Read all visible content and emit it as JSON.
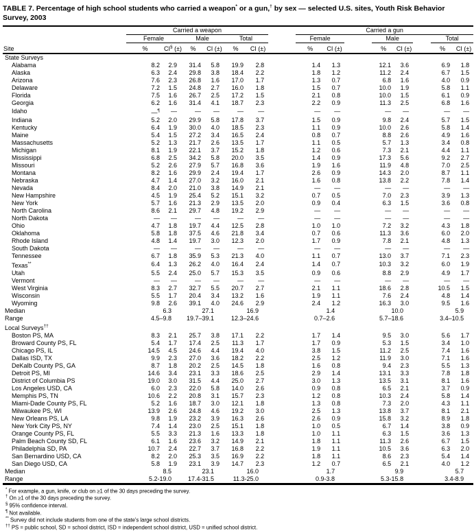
{
  "title": {
    "part1": "TABLE 7. Percentage of high school students who carried a weapon",
    "sup1": "*",
    "part2": " or a gun,",
    "sup2": "†",
    "part3": " by sex — selected U.S. sites, Youth Risk Behavior Survey, 2003"
  },
  "table": {
    "site_header": "Site",
    "group_weapon": "Carried a weapon",
    "group_gun": "Carried a gun",
    "sub_female": "Female",
    "sub_male": "Male",
    "sub_total": "Total",
    "pct": "%",
    "ci": "CI (±)",
    "ci_base": "CI",
    "ci_sup": "§",
    "ci_paren": " (±)",
    "sections": [
      {
        "label": "State Surveys",
        "label_sup": "",
        "rows": [
          {
            "site": "Alabama",
            "v": [
              "8.2",
              "2.9",
              "31.4",
              "5.8",
              "19.9",
              "2.8",
              "1.4",
              "1.3",
              "12.1",
              "3.6",
              "6.9",
              "1.8"
            ]
          },
          {
            "site": "Alaska",
            "v": [
              "6.3",
              "2.4",
              "29.8",
              "3.8",
              "18.4",
              "2.2",
              "1.8",
              "1.2",
              "11.2",
              "2.4",
              "6.7",
              "1.5"
            ]
          },
          {
            "site": "Arizona",
            "v": [
              "7.6",
              "2.3",
              "26.8",
              "1.6",
              "17.0",
              "1.7",
              "1.3",
              "0.7",
              "6.8",
              "1.6",
              "4.0",
              "0.9"
            ]
          },
          {
            "site": "Delaware",
            "v": [
              "7.2",
              "1.5",
              "24.8",
              "2.7",
              "16.0",
              "1.8",
              "1.5",
              "0.7",
              "10.0",
              "1.9",
              "5.8",
              "1.1"
            ]
          },
          {
            "site": "Florida",
            "v": [
              "7.5",
              "1.6",
              "26.7",
              "2.5",
              "17.2",
              "1.5",
              "2.1",
              "0.8",
              "10.0",
              "1.5",
              "6.1",
              "0.9"
            ]
          },
          {
            "site": "Georgia",
            "v": [
              "6.2",
              "1.6",
              "31.4",
              "4.1",
              "18.7",
              "2.3",
              "2.2",
              "0.9",
              "11.3",
              "2.5",
              "6.8",
              "1.6"
            ]
          },
          {
            "site": "Idaho",
            "v": [
              "—¶",
              "—",
              "—",
              "—",
              "—",
              "—",
              "—",
              "—",
              "—",
              "—",
              "—",
              "—"
            ]
          },
          {
            "site": "Indiana",
            "v": [
              "5.2",
              "2.0",
              "29.9",
              "5.8",
              "17.8",
              "3.7",
              "1.5",
              "0.9",
              "9.8",
              "2.4",
              "5.7",
              "1.5"
            ]
          },
          {
            "site": "Kentucky",
            "v": [
              "6.4",
              "1.9",
              "30.0",
              "4.0",
              "18.5",
              "2.3",
              "1.1",
              "0.9",
              "10.0",
              "2.6",
              "5.8",
              "1.4"
            ]
          },
          {
            "site": "Maine",
            "v": [
              "5.4",
              "1.5",
              "27.2",
              "3.4",
              "16.5",
              "2.4",
              "0.8",
              "0.7",
              "8.8",
              "2.6",
              "4.9",
              "1.6"
            ]
          },
          {
            "site": "Massachusetts",
            "v": [
              "5.2",
              "1.3",
              "21.7",
              "2.6",
              "13.5",
              "1.7",
              "1.1",
              "0.5",
              "5.7",
              "1.3",
              "3.4",
              "0.8"
            ]
          },
          {
            "site": "Michigan",
            "v": [
              "8.1",
              "1.9",
              "22.1",
              "3.7",
              "15.2",
              "1.8",
              "1.2",
              "0.6",
              "7.3",
              "2.1",
              "4.4",
              "1.1"
            ]
          },
          {
            "site": "Mississippi",
            "v": [
              "6.8",
              "2.5",
              "34.2",
              "5.8",
              "20.0",
              "3.5",
              "1.4",
              "0.9",
              "17.3",
              "5.6",
              "9.2",
              "2.7"
            ]
          },
          {
            "site": "Missouri",
            "v": [
              "5.2",
              "2.6",
              "27.9",
              "5.7",
              "16.8",
              "3.6",
              "1.9",
              "1.6",
              "11.9",
              "4.8",
              "7.0",
              "2.5"
            ]
          },
          {
            "site": "Montana",
            "v": [
              "8.2",
              "1.6",
              "29.9",
              "2.4",
              "19.4",
              "1.7",
              "2.6",
              "0.9",
              "14.3",
              "2.0",
              "8.7",
              "1.1"
            ]
          },
          {
            "site": "Nebraska",
            "v": [
              "4.7",
              "1.4",
              "27.0",
              "3.2",
              "16.0",
              "2.1",
              "1.6",
              "0.8",
              "13.8",
              "2.2",
              "7.8",
              "1.4"
            ]
          },
          {
            "site": "Nevada",
            "v": [
              "8.4",
              "2.0",
              "21.0",
              "3.8",
              "14.9",
              "2.1",
              "—",
              "—",
              "—",
              "—",
              "—",
              "—"
            ]
          },
          {
            "site": "New Hampshire",
            "v": [
              "4.5",
              "1.9",
              "25.4",
              "5.2",
              "15.1",
              "3.2",
              "0.7",
              "0.5",
              "7.0",
              "2.3",
              "3.9",
              "1.3"
            ]
          },
          {
            "site": "New York",
            "v": [
              "5.7",
              "1.6",
              "21.3",
              "2.9",
              "13.5",
              "2.0",
              "0.9",
              "0.4",
              "6.3",
              "1.5",
              "3.6",
              "0.8"
            ]
          },
          {
            "site": "North Carolina",
            "v": [
              "8.6",
              "2.1",
              "29.7",
              "4.8",
              "19.2",
              "2.9",
              "—",
              "—",
              "—",
              "—",
              "—",
              "—"
            ]
          },
          {
            "site": "North Dakota",
            "v": [
              "—",
              "—",
              "—",
              "—",
              "—",
              "—",
              "—",
              "—",
              "—",
              "—",
              "—",
              "—"
            ]
          },
          {
            "site": "Ohio",
            "v": [
              "4.7",
              "1.8",
              "19.7",
              "4.4",
              "12.5",
              "2.8",
              "1.0",
              "1.0",
              "7.2",
              "3.2",
              "4.3",
              "1.8"
            ]
          },
          {
            "site": "Oklahoma",
            "v": [
              "5.8",
              "1.8",
              "37.5",
              "4.6",
              "21.8",
              "3.4",
              "0.7",
              "0.6",
              "11.3",
              "3.6",
              "6.0",
              "2.0"
            ]
          },
          {
            "site": "Rhode Island",
            "v": [
              "4.8",
              "1.4",
              "19.7",
              "3.0",
              "12.3",
              "2.0",
              "1.7",
              "0.9",
              "7.8",
              "2.1",
              "4.8",
              "1.3"
            ]
          },
          {
            "site": "South Dakota",
            "v": [
              "—",
              "—",
              "—",
              "—",
              "—",
              "—",
              "—",
              "—",
              "—",
              "—",
              "—",
              "—"
            ]
          },
          {
            "site": "Tennessee",
            "v": [
              "6.7",
              "1.8",
              "35.9",
              "5.3",
              "21.3",
              "4.0",
              "1.1",
              "0.7",
              "13.0",
              "3.7",
              "7.1",
              "2.3"
            ]
          },
          {
            "site": "Texas",
            "sup": "**",
            "v": [
              "6.4",
              "1.3",
              "26.2",
              "4.0",
              "16.4",
              "2.4",
              "1.4",
              "0.7",
              "10.3",
              "3.2",
              "6.0",
              "1.9"
            ]
          },
          {
            "site": "Utah",
            "v": [
              "5.5",
              "2.4",
              "25.0",
              "5.7",
              "15.3",
              "3.5",
              "0.9",
              "0.6",
              "8.8",
              "2.9",
              "4.9",
              "1.7"
            ]
          },
          {
            "site": "Vermont",
            "v": [
              "—",
              "—",
              "—",
              "—",
              "—",
              "—",
              "—",
              "—",
              "—",
              "—",
              "—",
              "—"
            ]
          },
          {
            "site": "West Virginia",
            "v": [
              "8.3",
              "2.7",
              "32.7",
              "5.5",
              "20.7",
              "2.7",
              "2.1",
              "1.1",
              "18.6",
              "2.8",
              "10.5",
              "1.5"
            ]
          },
          {
            "site": "Wisconsin",
            "v": [
              "5.5",
              "1.7",
              "20.4",
              "3.4",
              "13.2",
              "1.6",
              "1.9",
              "1.1",
              "7.6",
              "2.4",
              "4.8",
              "1.4"
            ]
          },
          {
            "site": "Wyoming",
            "v": [
              "9.8",
              "2.6",
              "39.1",
              "4.0",
              "24.6",
              "2.9",
              "2.4",
              "1.2",
              "16.3",
              "3.0",
              "9.5",
              "1.6"
            ]
          }
        ],
        "median": {
          "label": "Median",
          "v": [
            "6.3",
            "27.1",
            "16.9",
            "1.4",
            "10.0",
            "5.9"
          ]
        },
        "range": {
          "label": "Range",
          "v": [
            "4.5–9.8",
            "19.7–39.1",
            "12.3–24.6",
            "0.7–2.6",
            "5.7–18.6",
            "3.4–10.5"
          ]
        }
      },
      {
        "label": "Local Surveys",
        "label_sup": "††",
        "rows": [
          {
            "site": "Boston PS, MA",
            "v": [
              "8.3",
              "2.1",
              "25.7",
              "3.8",
              "17.1",
              "2.2",
              "1.7",
              "1.4",
              "9.5",
              "3.0",
              "5.6",
              "1.7"
            ]
          },
          {
            "site": "Broward County PS, FL",
            "v": [
              "5.4",
              "1.7",
              "17.4",
              "2.5",
              "11.3",
              "1.7",
              "1.7",
              "0.9",
              "5.3",
              "1.5",
              "3.4",
              "1.0"
            ]
          },
          {
            "site": "Chicago PS, IL",
            "v": [
              "14.5",
              "4.5",
              "24.6",
              "4.4",
              "19.4",
              "4.0",
              "3.8",
              "1.5",
              "11.2",
              "2.5",
              "7.4",
              "1.6"
            ]
          },
          {
            "site": "Dallas ISD, TX",
            "v": [
              "9.9",
              "2.3",
              "27.0",
              "3.6",
              "18.2",
              "2.2",
              "2.5",
              "1.2",
              "11.9",
              "3.0",
              "7.1",
              "1.6"
            ]
          },
          {
            "site": "DeKalb County PS, GA",
            "v": [
              "8.7",
              "1.8",
              "20.2",
              "2.5",
              "14.5",
              "1.8",
              "1.6",
              "0.8",
              "9.4",
              "2.3",
              "5.5",
              "1.3"
            ]
          },
          {
            "site": "Detroit PS, MI",
            "v": [
              "14.6",
              "3.4",
              "23.1",
              "3.3",
              "18.6",
              "2.5",
              "2.9",
              "1.4",
              "13.1",
              "3.3",
              "7.8",
              "1.8"
            ]
          },
          {
            "site": "District of Columbia PS",
            "v": [
              "19.0",
              "3.0",
              "31.5",
              "4.4",
              "25.0",
              "2.7",
              "3.0",
              "1.3",
              "13.5",
              "3.1",
              "8.1",
              "1.6"
            ]
          },
          {
            "site": "Los Angeles USD, CA",
            "v": [
              "6.0",
              "2.3",
              "22.0",
              "5.8",
              "14.0",
              "2.6",
              "0.9",
              "0.8",
              "6.5",
              "2.1",
              "3.7",
              "0.9"
            ]
          },
          {
            "site": "Memphis PS, TN",
            "v": [
              "10.6",
              "2.2",
              "20.8",
              "3.1",
              "15.7",
              "2.3",
              "1.2",
              "0.8",
              "10.3",
              "2.4",
              "5.8",
              "1.4"
            ]
          },
          {
            "site": "Miami-Dade County PS, FL",
            "v": [
              "5.2",
              "1.6",
              "18.7",
              "3.0",
              "12.1",
              "1.8",
              "1.3",
              "0.8",
              "7.3",
              "2.0",
              "4.3",
              "1.1"
            ]
          },
          {
            "site": "Milwaukee PS, WI",
            "v": [
              "13.9",
              "2.6",
              "24.8",
              "4.6",
              "19.2",
              "3.0",
              "2.5",
              "1.3",
              "13.8",
              "3.7",
              "8.1",
              "2.1"
            ]
          },
          {
            "site": "New Orleans PS, LA",
            "v": [
              "9.8",
              "1.9",
              "23.2",
              "3.9",
              "16.3",
              "2.6",
              "2.6",
              "0.9",
              "15.8",
              "3.2",
              "8.9",
              "1.8"
            ]
          },
          {
            "site": "New York City PS, NY",
            "v": [
              "7.4",
              "1.4",
              "23.0",
              "2.5",
              "15.1",
              "1.8",
              "1.0",
              "0.5",
              "6.7",
              "1.4",
              "3.8",
              "0.9"
            ]
          },
          {
            "site": "Orange County PS, FL",
            "v": [
              "5.5",
              "3.3",
              "21.3",
              "1.6",
              "13.3",
              "1.8",
              "1.0",
              "1.1",
              "6.3",
              "1.5",
              "3.6",
              "1.3"
            ]
          },
          {
            "site": "Palm Beach County SD, FL",
            "v": [
              "6.1",
              "1.6",
              "23.6",
              "3.2",
              "14.9",
              "2.1",
              "1.8",
              "1.1",
              "11.3",
              "2.6",
              "6.7",
              "1.5"
            ]
          },
          {
            "site": "Philadelphia SD, PA",
            "v": [
              "10.7",
              "2.4",
              "22.7",
              "3.7",
              "16.8",
              "2.2",
              "1.9",
              "1.1",
              "10.5",
              "3.6",
              "6.3",
              "2.0"
            ]
          },
          {
            "site": "San Bernardino USD, CA",
            "v": [
              "8.2",
              "2.0",
              "25.3",
              "3.5",
              "16.9",
              "2.2",
              "1.8",
              "1.1",
              "8.6",
              "2.3",
              "5.4",
              "1.4"
            ]
          },
          {
            "site": "San Diego USD, CA",
            "v": [
              "5.8",
              "1.9",
              "23.1",
              "3.9",
              "14.7",
              "2.3",
              "1.2",
              "0.7",
              "6.5",
              "2.1",
              "4.0",
              "1.2"
            ]
          }
        ],
        "median": {
          "label": "Median",
          "v": [
            "8.5",
            "23.1",
            "16.0",
            "1.7",
            "9.9",
            "5.7"
          ]
        },
        "range": {
          "label": "Range",
          "v": [
            "5.2-19.0",
            "17.4-31.5",
            "11.3-25.0",
            "0.9-3.8",
            "5.3-15.8",
            "3.4-8.9"
          ]
        }
      }
    ]
  },
  "footnotes": [
    {
      "marker": "*",
      "text": "For example, a gun, knife, or club on ≥1 of the 30 days preceding the survey."
    },
    {
      "marker": "†",
      "text": "On ≥1 of the 30 days preceding the survey."
    },
    {
      "marker": "§",
      "text": "95% confidence interval."
    },
    {
      "marker": "¶",
      "text": "Not available."
    },
    {
      "marker": "**",
      "text": "Survey did not include students from one of the state's large school districts."
    },
    {
      "marker": "††",
      "text": "PS = public school, SD = school district, ISD = independent school district, USD = unified school district."
    }
  ]
}
